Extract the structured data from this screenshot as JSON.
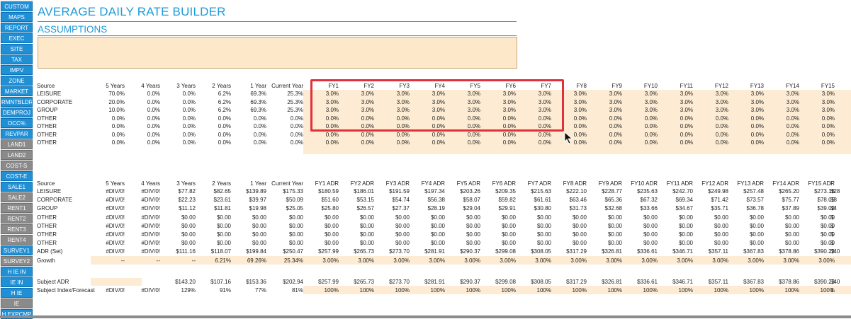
{
  "sidebar": {
    "items": [
      {
        "label": "CUSTOM",
        "style": "blue"
      },
      {
        "label": "MAPS",
        "style": "blue"
      },
      {
        "label": "REPORT",
        "style": "blue"
      },
      {
        "label": "EXEC",
        "style": "blue"
      },
      {
        "label": "SITE",
        "style": "blue"
      },
      {
        "label": "TAX",
        "style": "blue"
      },
      {
        "label": "IMPV",
        "style": "blue"
      },
      {
        "label": "ZONE",
        "style": "blue"
      },
      {
        "label": "MARKET",
        "style": "blue"
      },
      {
        "label": "RMNTBLDR",
        "style": "blue"
      },
      {
        "label": "DEMPROJ",
        "style": "blue"
      },
      {
        "label": "OCC%",
        "style": "blue"
      },
      {
        "label": "REVPAR",
        "style": "blue"
      },
      {
        "label": "LAND1",
        "style": "gray"
      },
      {
        "label": "LAND2",
        "style": "gray"
      },
      {
        "label": "COST-S",
        "style": "gray"
      },
      {
        "label": "COST-E",
        "style": "blue"
      },
      {
        "label": "SALE1",
        "style": "blue"
      },
      {
        "label": "SALE2",
        "style": "gray"
      },
      {
        "label": "RENT1",
        "style": "gray"
      },
      {
        "label": "RENT2",
        "style": "gray"
      },
      {
        "label": "RENT3",
        "style": "gray"
      },
      {
        "label": "RENT4",
        "style": "gray"
      },
      {
        "label": "SURVEY1",
        "style": "blue"
      },
      {
        "label": "SURVEY2",
        "style": "gray"
      },
      {
        "label": "H IE IN",
        "style": "blue"
      },
      {
        "label": "IE IN",
        "style": "blue"
      },
      {
        "label": "H IE",
        "style": "blue"
      },
      {
        "label": "IE",
        "style": "gray"
      },
      {
        "label": "H EXPCMP",
        "style": "blue"
      }
    ]
  },
  "header": {
    "title": "AVERAGE DAILY RATE BUILDER",
    "subtitle": "ASSUMPTIONS"
  },
  "growth_table": {
    "headers": [
      "Source",
      "5 Years",
      "4 Years",
      "3 Years",
      "2 Years",
      "1 Year",
      "Current Year",
      "FY1",
      "FY2",
      "FY3",
      "FY4",
      "FY5",
      "FY6",
      "FY7",
      "FY8",
      "FY9",
      "FY10",
      "FY11",
      "FY12",
      "FY13",
      "FY14",
      "FY15"
    ],
    "rows": [
      [
        "LEISURE",
        "70.0%",
        "0.0%",
        "0.0%",
        "6.2%",
        "69.3%",
        "25.3%",
        "3.0%",
        "3.0%",
        "3.0%",
        "3.0%",
        "3.0%",
        "3.0%",
        "3.0%",
        "3.0%",
        "3.0%",
        "3.0%",
        "3.0%",
        "3.0%",
        "3.0%",
        "3.0%",
        "3.0%"
      ],
      [
        "CORPORATE",
        "20.0%",
        "0.0%",
        "0.0%",
        "6.2%",
        "69.3%",
        "25.3%",
        "3.0%",
        "3.0%",
        "3.0%",
        "3.0%",
        "3.0%",
        "3.0%",
        "3.0%",
        "3.0%",
        "3.0%",
        "3.0%",
        "3.0%",
        "3.0%",
        "3.0%",
        "3.0%",
        "3.0%"
      ],
      [
        "GROUP",
        "10.0%",
        "0.0%",
        "0.0%",
        "6.2%",
        "69.3%",
        "25.3%",
        "3.0%",
        "3.0%",
        "3.0%",
        "3.0%",
        "3.0%",
        "3.0%",
        "3.0%",
        "3.0%",
        "3.0%",
        "3.0%",
        "3.0%",
        "3.0%",
        "3.0%",
        "3.0%",
        "3.0%"
      ],
      [
        "OTHER",
        "0.0%",
        "0.0%",
        "0.0%",
        "0.0%",
        "0.0%",
        "0.0%",
        "0.0%",
        "0.0%",
        "0.0%",
        "0.0%",
        "0.0%",
        "0.0%",
        "0.0%",
        "0.0%",
        "0.0%",
        "0.0%",
        "0.0%",
        "0.0%",
        "0.0%",
        "0.0%",
        "0.0%"
      ],
      [
        "OTHER",
        "0.0%",
        "0.0%",
        "0.0%",
        "0.0%",
        "0.0%",
        "0.0%",
        "0.0%",
        "0.0%",
        "0.0%",
        "0.0%",
        "0.0%",
        "0.0%",
        "0.0%",
        "0.0%",
        "0.0%",
        "0.0%",
        "0.0%",
        "0.0%",
        "0.0%",
        "0.0%",
        "0.0%"
      ],
      [
        "OTHER",
        "0.0%",
        "0.0%",
        "0.0%",
        "0.0%",
        "0.0%",
        "0.0%",
        "0.0%",
        "0.0%",
        "0.0%",
        "0.0%",
        "0.0%",
        "0.0%",
        "0.0%",
        "0.0%",
        "0.0%",
        "0.0%",
        "0.0%",
        "0.0%",
        "0.0%",
        "0.0%",
        "0.0%"
      ],
      [
        "OTHER",
        "0.0%",
        "0.0%",
        "0.0%",
        "0.0%",
        "0.0%",
        "0.0%",
        "0.0%",
        "0.0%",
        "0.0%",
        "0.0%",
        "0.0%",
        "0.0%",
        "0.0%",
        "0.0%",
        "0.0%",
        "0.0%",
        "0.0%",
        "0.0%",
        "0.0%",
        "0.0%",
        "0.0%"
      ]
    ]
  },
  "adr_table": {
    "headers": [
      "Source",
      "5 Years",
      "4 Years",
      "3 Years",
      "2 Years",
      "1 Year",
      "Current Year",
      "FY1 ADR",
      "FY2 ADR",
      "FY3 ADR",
      "FY4 ADR",
      "FY5 ADR",
      "FY6 ADR",
      "FY7 ADR",
      "FY8 ADR",
      "FY9 ADR",
      "FY10 ADR",
      "FY11 ADR",
      "FY12 ADR",
      "FY13 ADR",
      "FY14 ADR",
      "FY15 ADR",
      "F"
    ],
    "rows": [
      [
        "LEISURE",
        "#DIV/0!",
        "#DIV/0!",
        "$77.82",
        "$82.65",
        "$139.89",
        "$175.33",
        "$180.59",
        "$186.01",
        "$191.59",
        "$197.34",
        "$203.26",
        "$209.35",
        "$215.63",
        "$222.10",
        "$228.77",
        "$235.63",
        "$242.70",
        "$249.98",
        "$257.48",
        "$265.20",
        "$273.16",
        "$28"
      ],
      [
        "CORPORATE",
        "#DIV/0!",
        "#DIV/0!",
        "$22.23",
        "$23.61",
        "$39.97",
        "$50.09",
        "$51.60",
        "$53.15",
        "$54.74",
        "$56.38",
        "$58.07",
        "$59.82",
        "$61.61",
        "$63.46",
        "$65.36",
        "$67.32",
        "$69.34",
        "$71.42",
        "$73.57",
        "$75.77",
        "$78.05",
        "$8"
      ],
      [
        "GROUP",
        "#DIV/0!",
        "#DIV/0!",
        "$11.12",
        "$11.81",
        "$19.98",
        "$25.05",
        "$25.80",
        "$26.57",
        "$27.37",
        "$28.19",
        "$29.04",
        "$29.91",
        "$30.80",
        "$31.73",
        "$32.68",
        "$33.66",
        "$34.67",
        "$35.71",
        "$36.78",
        "$37.89",
        "$39.02",
        "$4"
      ],
      [
        "OTHER",
        "#DIV/0!",
        "#DIV/0!",
        "$0.00",
        "$0.00",
        "$0.00",
        "$0.00",
        "$0.00",
        "$0.00",
        "$0.00",
        "$0.00",
        "$0.00",
        "$0.00",
        "$0.00",
        "$0.00",
        "$0.00",
        "$0.00",
        "$0.00",
        "$0.00",
        "$0.00",
        "$0.00",
        "$0.00",
        "$"
      ],
      [
        "OTHER",
        "#DIV/0!",
        "#DIV/0!",
        "$0.00",
        "$0.00",
        "$0.00",
        "$0.00",
        "$0.00",
        "$0.00",
        "$0.00",
        "$0.00",
        "$0.00",
        "$0.00",
        "$0.00",
        "$0.00",
        "$0.00",
        "$0.00",
        "$0.00",
        "$0.00",
        "$0.00",
        "$0.00",
        "$0.00",
        "$"
      ],
      [
        "OTHER",
        "#DIV/0!",
        "#DIV/0!",
        "$0.00",
        "$0.00",
        "$0.00",
        "$0.00",
        "$0.00",
        "$0.00",
        "$0.00",
        "$0.00",
        "$0.00",
        "$0.00",
        "$0.00",
        "$0.00",
        "$0.00",
        "$0.00",
        "$0.00",
        "$0.00",
        "$0.00",
        "$0.00",
        "$0.00",
        "$"
      ],
      [
        "OTHER",
        "#DIV/0!",
        "#DIV/0!",
        "$0.00",
        "$0.00",
        "$0.00",
        "$0.00",
        "$0.00",
        "$0.00",
        "$0.00",
        "$0.00",
        "$0.00",
        "$0.00",
        "$0.00",
        "$0.00",
        "$0.00",
        "$0.00",
        "$0.00",
        "$0.00",
        "$0.00",
        "$0.00",
        "$0.00",
        "$"
      ],
      [
        "ADR (Set)",
        "#DIV/0!",
        "#DIV/0!",
        "$111.16",
        "$118.07",
        "$199.84",
        "$250.47",
        "$257.99",
        "$265.73",
        "$273.70",
        "$281.91",
        "$290.37",
        "$299.08",
        "$308.05",
        "$317.29",
        "$326.81",
        "$336.61",
        "$346.71",
        "$357.11",
        "$367.83",
        "$378.86",
        "$390.23",
        "$40"
      ],
      [
        "Growth",
        "--",
        "--",
        "--",
        "6.21%",
        "69.26%",
        "25.34%",
        "3.00%",
        "3.00%",
        "3.00%",
        "3.00%",
        "3.00%",
        "3.00%",
        "3.00%",
        "3.00%",
        "3.00%",
        "3.00%",
        "3.00%",
        "3.00%",
        "3.00%",
        "3.00%",
        "3.00%",
        ""
      ]
    ]
  },
  "subject_table": {
    "rows": [
      [
        "Subject ADR",
        "",
        "",
        "$143.20",
        "$107.16",
        "$153.36",
        "$202.94",
        "$257.99",
        "$265.73",
        "$273.70",
        "$281.91",
        "$290.37",
        "$299.08",
        "$308.05",
        "$317.29",
        "$326.81",
        "$336.61",
        "$346.71",
        "$357.11",
        "$367.83",
        "$378.86",
        "$390.23",
        "$40"
      ],
      [
        "Subject Index/Forecast",
        "#DIV/0!",
        "#DIV/0!",
        "129%",
        "91%",
        "77%",
        "81%",
        "100%",
        "100%",
        "100%",
        "100%",
        "100%",
        "100%",
        "100%",
        "100%",
        "100%",
        "100%",
        "100%",
        "100%",
        "100%",
        "100%",
        "100%",
        "1"
      ]
    ]
  },
  "colors": {
    "accent": "#1e9bd7",
    "input_fill": "#fde9c9",
    "highlight": "#e0313a",
    "nav_blue": "#1f8fd6",
    "nav_gray": "#8a8a8a"
  },
  "icons": {
    "cursor": "cursor-icon"
  }
}
